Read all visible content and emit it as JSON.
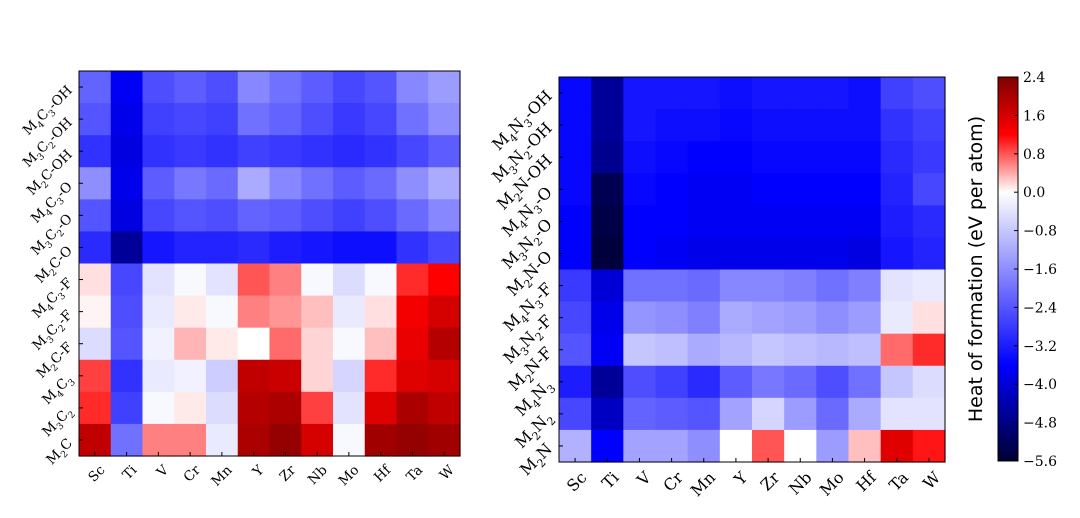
{
  "chart_data": [
    {
      "type": "heatmap",
      "x_categories": [
        "Sc",
        "Ti",
        "V",
        "Cr",
        "Mn",
        "Y",
        "Zr",
        "Nb",
        "Mo",
        "Hf",
        "Ta",
        "W"
      ],
      "y_categories": [
        "M4C3-OH",
        "M3C2-OH",
        "M2C-OH",
        "M4C3-O",
        "M3C2-O",
        "M2C-O",
        "M4C3-F",
        "M3C2-F",
        "M2C-F",
        "M4C3",
        "M3C2",
        "M2C"
      ],
      "y_tick_parts": [
        [
          [
            "M",
            "4",
            "C",
            "3",
            "-OH"
          ]
        ],
        [
          [
            "M",
            "3",
            "C",
            "2",
            "-OH"
          ]
        ],
        [
          [
            "M",
            "2",
            "C",
            "",
            "-OH"
          ]
        ],
        [
          [
            "M",
            "4",
            "C",
            "3",
            "-O"
          ]
        ],
        [
          [
            "M",
            "3",
            "C",
            "2",
            "-O"
          ]
        ],
        [
          [
            "M",
            "2",
            "C",
            "",
            "-O"
          ]
        ],
        [
          [
            "M",
            "4",
            "C",
            "3",
            "-F"
          ]
        ],
        [
          [
            "M",
            "3",
            "C",
            "2",
            "-F"
          ]
        ],
        [
          [
            "M",
            "2",
            "C",
            "",
            "-F"
          ]
        ],
        [
          [
            "M",
            "4",
            "C",
            "3",
            ""
          ]
        ],
        [
          [
            "M",
            "3",
            "C",
            "2",
            ""
          ]
        ],
        [
          [
            "M",
            "2",
            "C",
            "",
            ""
          ]
        ]
      ],
      "values": [
        [
          -2.2,
          -3.7,
          -2.5,
          -2.3,
          -2.5,
          -1.7,
          -2.0,
          -2.3,
          -2.6,
          -2.4,
          -1.7,
          -1.4
        ],
        [
          -2.4,
          -3.8,
          -2.7,
          -2.6,
          -2.7,
          -2.0,
          -2.2,
          -2.5,
          -2.8,
          -2.6,
          -2.0,
          -1.6
        ],
        [
          -2.9,
          -3.9,
          -2.9,
          -2.8,
          -2.9,
          -2.7,
          -2.8,
          -2.9,
          -3.0,
          -2.9,
          -2.6,
          -2.3
        ],
        [
          -1.6,
          -3.8,
          -2.3,
          -1.9,
          -2.1,
          -1.2,
          -1.7,
          -2.0,
          -2.3,
          -2.1,
          -1.6,
          -1.2
        ],
        [
          -2.4,
          -3.9,
          -2.6,
          -2.4,
          -2.5,
          -2.2,
          -2.3,
          -2.5,
          -2.7,
          -2.5,
          -2.1,
          -1.7
        ],
        [
          -3.0,
          -4.6,
          -3.3,
          -3.1,
          -3.1,
          -3.0,
          -3.2,
          -3.3,
          -3.4,
          -3.4,
          -2.9,
          -2.6
        ],
        [
          0.15,
          -2.6,
          -0.4,
          -0.1,
          -0.4,
          0.8,
          0.6,
          -0.1,
          -0.5,
          -0.1,
          1.0,
          1.2
        ],
        [
          0.05,
          -2.5,
          -0.3,
          0.1,
          -0.1,
          0.6,
          0.5,
          0.3,
          -0.3,
          0.15,
          1.3,
          1.6
        ],
        [
          -0.5,
          -2.4,
          -0.2,
          0.35,
          0.1,
          0.0,
          0.7,
          0.2,
          -0.1,
          0.3,
          1.4,
          1.9
        ],
        [
          0.9,
          -2.9,
          -0.3,
          -0.2,
          -0.7,
          1.8,
          1.7,
          0.2,
          -0.6,
          1.0,
          1.5,
          1.6
        ],
        [
          1.0,
          -2.7,
          -0.1,
          0.1,
          -0.5,
          1.9,
          2.0,
          0.9,
          -0.4,
          1.5,
          2.0,
          1.8
        ],
        [
          1.8,
          -2.0,
          0.6,
          0.6,
          -0.3,
          2.0,
          2.2,
          1.6,
          -0.1,
          2.1,
          2.2,
          2.1
        ]
      ]
    },
    {
      "type": "heatmap",
      "x_categories": [
        "Sc",
        "Ti",
        "V",
        "Cr",
        "Mn",
        "Y",
        "Zr",
        "Nb",
        "Mo",
        "Hf",
        "Ta",
        "W"
      ],
      "y_categories": [
        "M4N3-OH",
        "M3N2-OH",
        "M2N-OH",
        "M4N3-O",
        "M3N2-O",
        "M2N-O",
        "M4N3-F",
        "M3N2-F",
        "M2N-F",
        "M4N3",
        "M2N2",
        "M2N"
      ],
      "y_tick_parts": [
        [
          [
            "M",
            "4",
            "N",
            "3",
            "-OH"
          ]
        ],
        [
          [
            "M",
            "3",
            "N",
            "2",
            "-OH"
          ]
        ],
        [
          [
            "M",
            "2",
            "N",
            "",
            "-OH"
          ]
        ],
        [
          [
            "M",
            "4",
            "N",
            "3",
            "-O"
          ]
        ],
        [
          [
            "M",
            "3",
            "N",
            "2",
            "-O"
          ]
        ],
        [
          [
            "M",
            "2",
            "N",
            "",
            "-O"
          ]
        ],
        [
          [
            "M",
            "4",
            "N",
            "3",
            "-F"
          ]
        ],
        [
          [
            "M",
            "3",
            "N",
            "2",
            "-F"
          ]
        ],
        [
          [
            "M",
            "2",
            "N",
            "",
            "-F"
          ]
        ],
        [
          [
            "M",
            "4",
            "N",
            "3",
            ""
          ]
        ],
        [
          [
            "M",
            "2",
            "N",
            "2",
            ""
          ]
        ],
        [
          [
            "M",
            "2",
            "N",
            "",
            ""
          ]
        ]
      ],
      "values": [
        [
          -3.5,
          -4.6,
          -3.3,
          -3.3,
          -3.3,
          -3.4,
          -3.3,
          -3.3,
          -3.3,
          -3.4,
          -2.7,
          -2.5
        ],
        [
          -3.5,
          -4.6,
          -3.3,
          -3.4,
          -3.4,
          -3.5,
          -3.4,
          -3.4,
          -3.4,
          -3.4,
          -2.9,
          -2.7
        ],
        [
          -3.5,
          -4.7,
          -3.4,
          -3.5,
          -3.6,
          -3.6,
          -3.5,
          -3.5,
          -3.5,
          -3.5,
          -3.0,
          -2.8
        ],
        [
          -3.5,
          -5.3,
          -3.5,
          -3.6,
          -3.7,
          -3.7,
          -3.6,
          -3.6,
          -3.6,
          -3.6,
          -3.1,
          -2.6
        ],
        [
          -3.6,
          -5.4,
          -3.6,
          -3.6,
          -3.7,
          -3.7,
          -3.7,
          -3.7,
          -3.7,
          -3.7,
          -3.2,
          -3.0
        ],
        [
          -3.6,
          -5.5,
          -3.6,
          -3.7,
          -3.8,
          -3.8,
          -3.8,
          -3.8,
          -3.8,
          -3.9,
          -3.3,
          -3.1
        ],
        [
          -2.8,
          -4.0,
          -2.0,
          -2.0,
          -2.1,
          -1.7,
          -1.7,
          -1.8,
          -2.0,
          -1.8,
          -0.4,
          -0.3
        ],
        [
          -2.6,
          -3.8,
          -1.5,
          -1.6,
          -1.8,
          -1.2,
          -1.3,
          -1.4,
          -1.6,
          -1.4,
          -0.3,
          0.15
        ],
        [
          -2.4,
          -3.7,
          -0.8,
          -0.9,
          -1.2,
          -1.0,
          -0.8,
          -0.9,
          -1.0,
          -0.9,
          0.7,
          1.0
        ],
        [
          -3.2,
          -4.6,
          -2.5,
          -2.7,
          -3.0,
          -2.3,
          -1.9,
          -2.1,
          -2.5,
          -2.0,
          -0.8,
          -0.5
        ],
        [
          -2.6,
          -4.2,
          -2.2,
          -2.3,
          -2.4,
          -1.3,
          -0.6,
          -1.4,
          -2.1,
          -1.2,
          -0.4,
          -0.4
        ],
        [
          -1.1,
          -3.6,
          -1.3,
          -1.3,
          -1.6,
          0.0,
          0.8,
          0.0,
          -1.4,
          0.3,
          1.5,
          1.1
        ]
      ]
    }
  ],
  "colorbar": {
    "label": "Heat of formation (eV per atom)",
    "min": -5.6,
    "max": 2.4,
    "ticks": [
      "2.4",
      "1.6",
      "0.8",
      "0.0",
      "−0.8",
      "−1.6",
      "−2.4",
      "−3.2",
      "−4.0",
      "−4.8",
      "−5.6"
    ],
    "colors": {
      "low": "#000033",
      "mid_low": "#0000ff",
      "zero": "#ffffff",
      "mid_high": "#ff0000",
      "high": "#800000"
    }
  }
}
